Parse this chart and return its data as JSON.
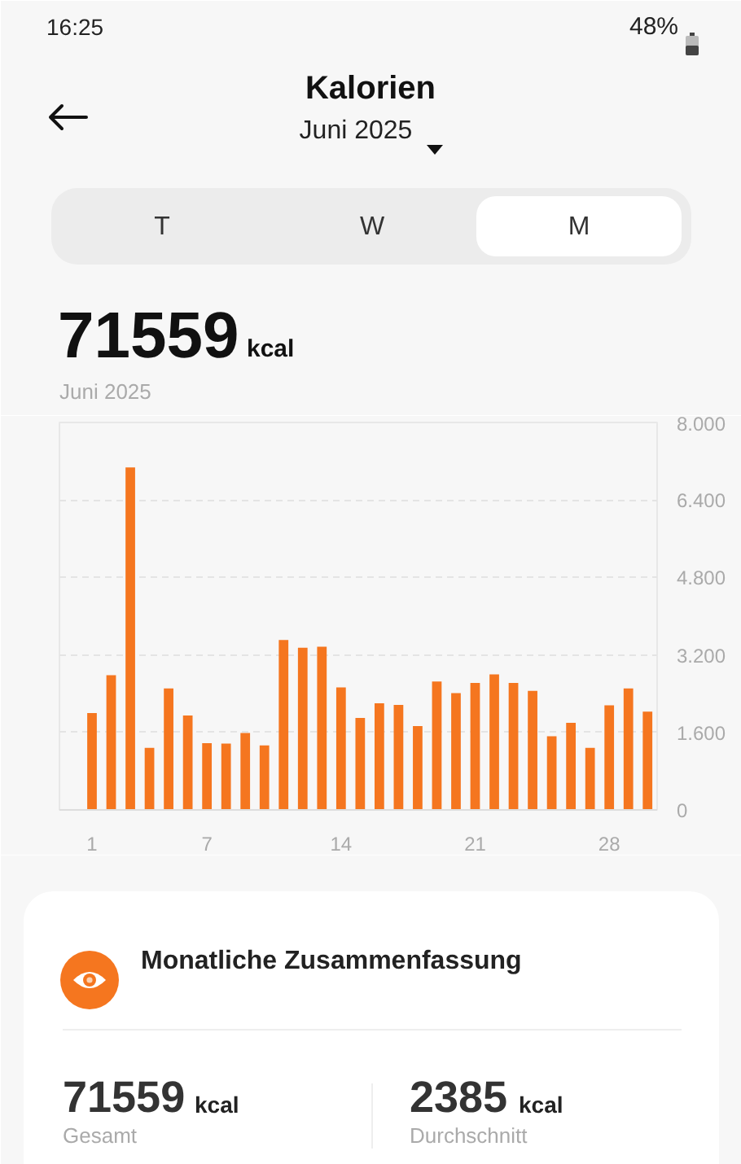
{
  "chart_data": {
    "type": "bar",
    "title": "Kalorien",
    "subtitle": "Juni 2025",
    "x": [
      1,
      2,
      3,
      4,
      5,
      6,
      7,
      8,
      9,
      10,
      11,
      12,
      13,
      14,
      15,
      16,
      17,
      18,
      19,
      20,
      21,
      22,
      23,
      24,
      25,
      26,
      27,
      28,
      29,
      30
    ],
    "values": [
      2000,
      2780,
      7070,
      1280,
      2510,
      1950,
      1380,
      1370,
      1590,
      1330,
      3510,
      3350,
      3370,
      2530,
      1900,
      2200,
      2170,
      1730,
      2650,
      2410,
      2620,
      2800,
      2620,
      2460,
      1520,
      1800,
      1280,
      2160,
      2510,
      2030
    ],
    "color": "#f5761f",
    "xlim": [
      -0.7,
      30.5
    ],
    "xticks": [
      1,
      7,
      14,
      21,
      28
    ],
    "ylim": [
      0,
      8000
    ],
    "yticks": [
      0,
      {
        "value": 1600,
        "label": "1.600"
      },
      {
        "value": 3200,
        "label": "3.200"
      },
      {
        "value": 4800,
        "label": "4.800"
      },
      {
        "value": 6400,
        "label": "6.400"
      },
      {
        "value": 8000,
        "label": "8.000"
      }
    ],
    "grid": "y",
    "annotations": [
      "16:25",
      "48%",
      "T",
      "W",
      "M",
      "71559",
      "kcal",
      "Juni 2025",
      "Monatliche Zusammenfassung",
      "71559",
      "kcal",
      "Gesamt",
      "2385",
      "kcal",
      "Durchschnitt"
    ]
  }
}
